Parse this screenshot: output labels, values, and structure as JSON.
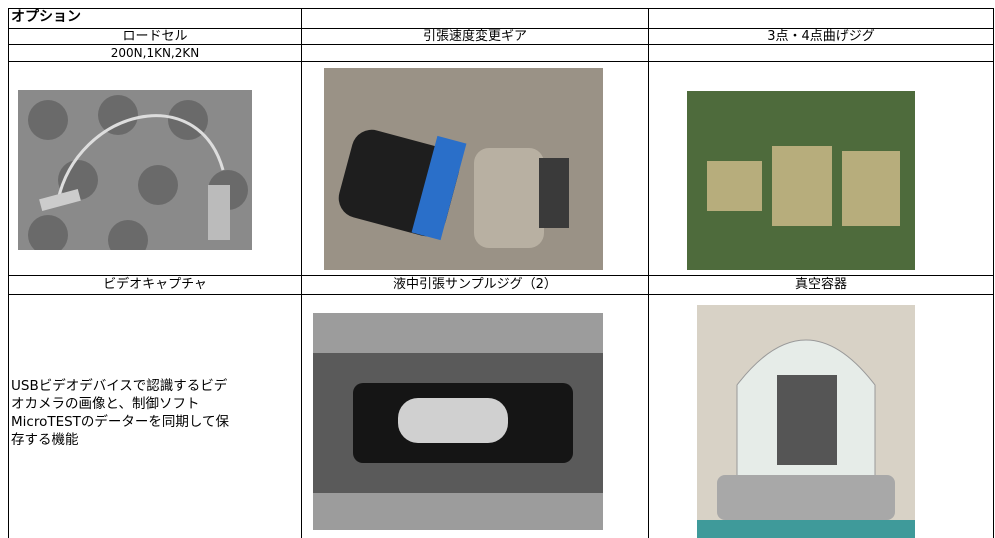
{
  "table": {
    "title": "オプション",
    "header_row_1": [
      "ロードセル",
      "引張速度変更ギア",
      "3点・4点曲げジグ"
    ],
    "load_cell_spec": "200N,1KN,2KN",
    "header_row_2": [
      "ビデオキャプチャ",
      "液中引張サンプルジグ（2）",
      "真空容器"
    ],
    "video_capture_description": [
      "USBビデオデバイスで認識するビデ",
      "オカメラの画像と、制御ソフト",
      "MicroTESTのデーターを同期して保",
      "存する機能"
    ]
  }
}
